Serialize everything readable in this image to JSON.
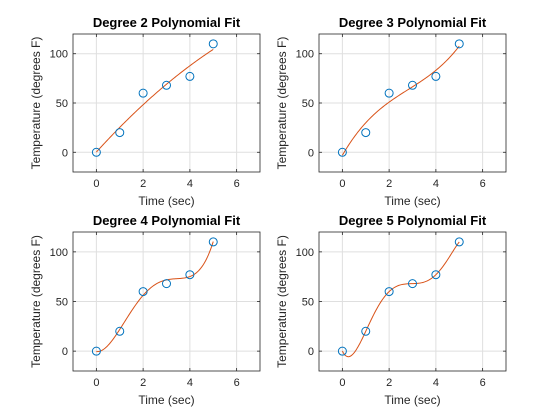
{
  "figure": {
    "background": "#ffffff"
  },
  "chart_data": [
    {
      "type": "scatter",
      "title": "Degree 2 Polynomial Fit",
      "xlabel": "Time (sec)",
      "ylabel": "Temperature (degrees F)",
      "xlim": [
        -1,
        7
      ],
      "ylim": [
        -20,
        120
      ],
      "xticks": [
        0,
        2,
        4,
        6
      ],
      "yticks": [
        0,
        50,
        100
      ],
      "grid": true,
      "points": {
        "x": [
          0,
          1,
          2,
          3,
          4,
          5
        ],
        "y": [
          0,
          20,
          60,
          68,
          77,
          110
        ]
      },
      "fit": {
        "degree": 2,
        "x_range": [
          0,
          5
        ]
      }
    },
    {
      "type": "scatter",
      "title": "Degree 3 Polynomial Fit",
      "xlabel": "Time (sec)",
      "ylabel": "Temperature (degrees F)",
      "xlim": [
        -1,
        7
      ],
      "ylim": [
        -20,
        120
      ],
      "xticks": [
        0,
        2,
        4,
        6
      ],
      "yticks": [
        0,
        50,
        100
      ],
      "grid": true,
      "points": {
        "x": [
          0,
          1,
          2,
          3,
          4,
          5
        ],
        "y": [
          0,
          20,
          60,
          68,
          77,
          110
        ]
      },
      "fit": {
        "degree": 3,
        "x_range": [
          0,
          5
        ]
      }
    },
    {
      "type": "scatter",
      "title": "Degree 4 Polynomial Fit",
      "xlabel": "Time (sec)",
      "ylabel": "Temperature (degrees F)",
      "xlim": [
        -1,
        7
      ],
      "ylim": [
        -20,
        120
      ],
      "xticks": [
        0,
        2,
        4,
        6
      ],
      "yticks": [
        0,
        50,
        100
      ],
      "grid": true,
      "points": {
        "x": [
          0,
          1,
          2,
          3,
          4,
          5
        ],
        "y": [
          0,
          20,
          60,
          68,
          77,
          110
        ]
      },
      "fit": {
        "degree": 4,
        "x_range": [
          0,
          5
        ]
      }
    },
    {
      "type": "scatter",
      "title": "Degree 5 Polynomial Fit",
      "xlabel": "Time (sec)",
      "ylabel": "Temperature (degrees F)",
      "xlim": [
        -1,
        7
      ],
      "ylim": [
        -20,
        120
      ],
      "xticks": [
        0,
        2,
        4,
        6
      ],
      "yticks": [
        0,
        50,
        100
      ],
      "grid": true,
      "points": {
        "x": [
          0,
          1,
          2,
          3,
          4,
          5
        ],
        "y": [
          0,
          20,
          60,
          68,
          77,
          110
        ]
      },
      "fit": {
        "degree": 5,
        "x_range": [
          0,
          5
        ]
      }
    }
  ],
  "colors": {
    "marker": "#0072bd",
    "fit_line": "#d95319",
    "axes": "#262626",
    "grid": "#dfdfdf"
  }
}
